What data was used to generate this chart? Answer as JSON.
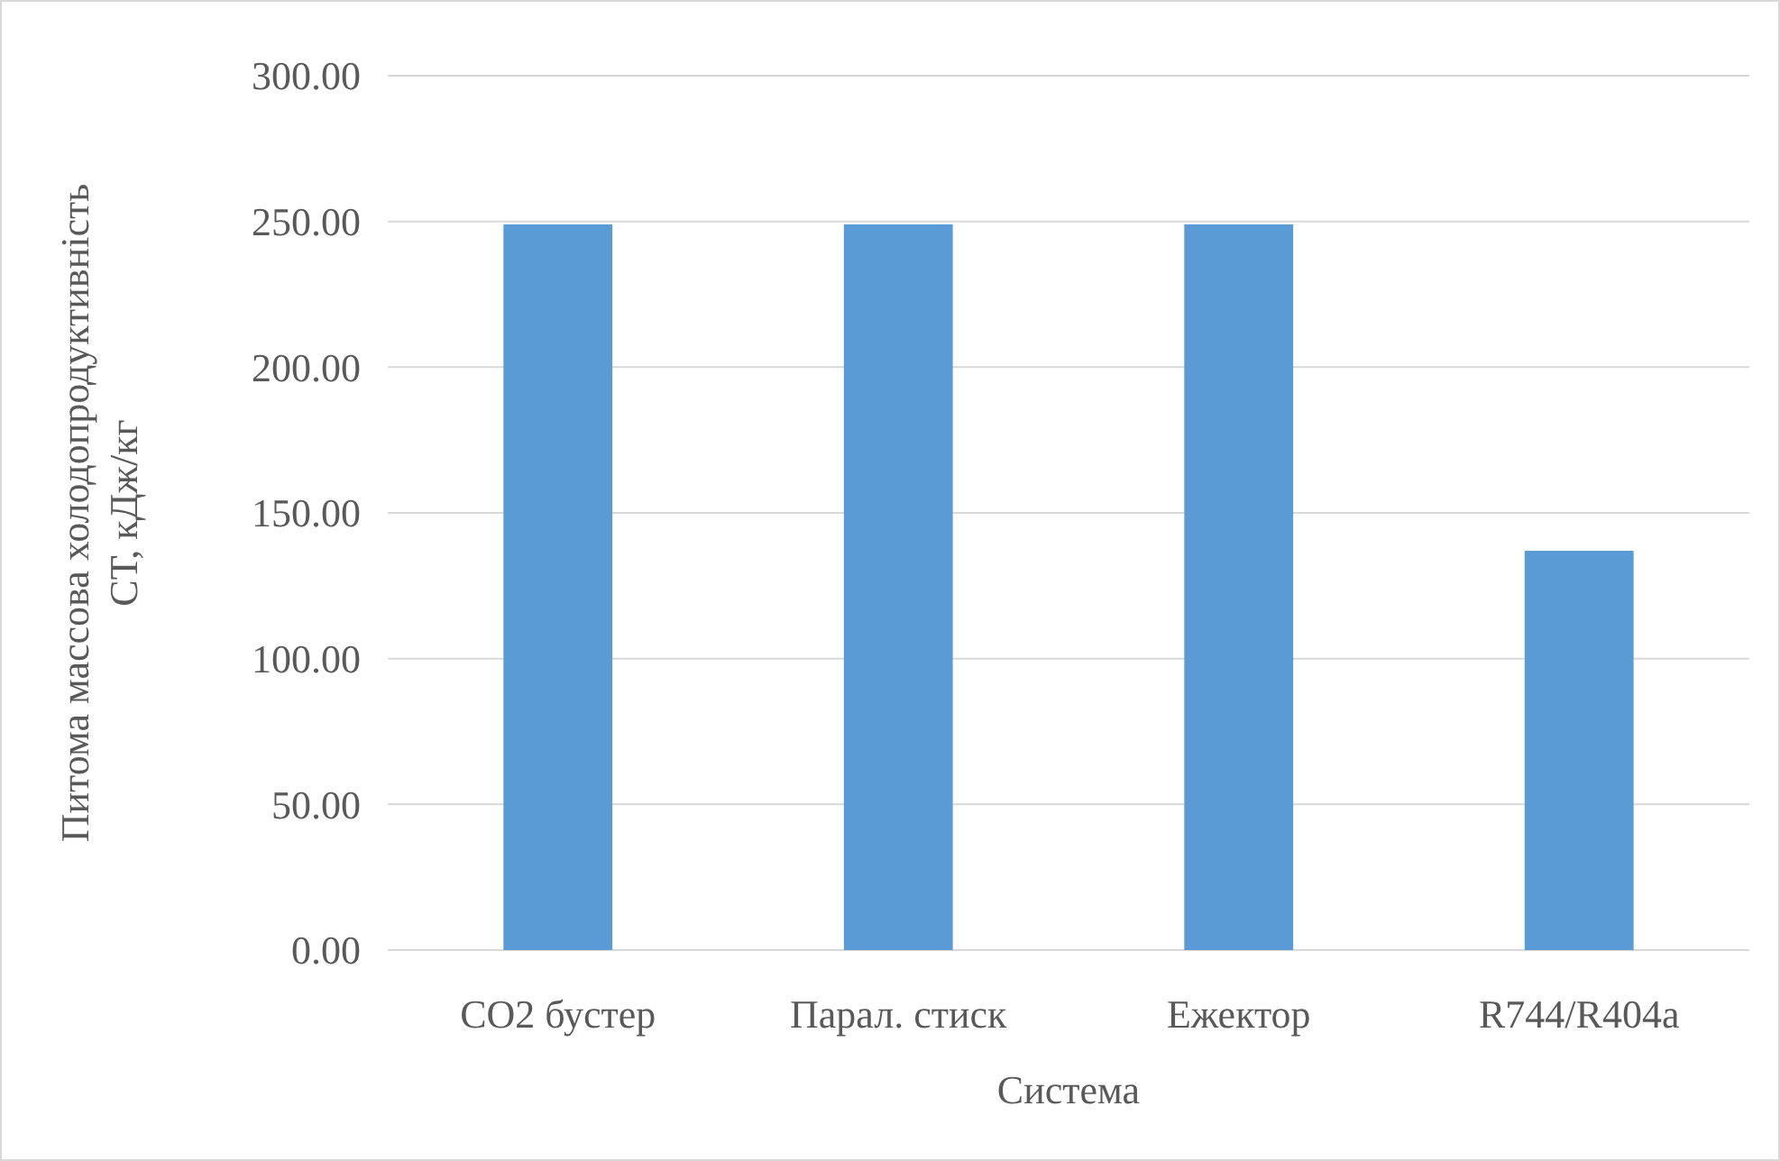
{
  "chart_data": {
    "type": "bar",
    "xlabel": "Система",
    "ylabel": "Питома массова холодопродуктивність\nСТ, кДж/кг",
    "categories": [
      "CO2 бустер",
      "Парал. стиск",
      "Ежектор",
      "R744/R404a"
    ],
    "values": [
      249,
      249,
      249,
      137
    ],
    "color": "#5b9bd5",
    "ylim": [
      0,
      300
    ],
    "yticks": [
      {
        "value": 0,
        "label": "0.00"
      },
      {
        "value": 50,
        "label": "50.00"
      },
      {
        "value": 100,
        "label": "100.00"
      },
      {
        "value": 150,
        "label": "150.00"
      },
      {
        "value": 200,
        "label": "200.00"
      },
      {
        "value": 250,
        "label": "250.00"
      },
      {
        "value": 300,
        "label": "300.00"
      }
    ],
    "grid": "y"
  }
}
